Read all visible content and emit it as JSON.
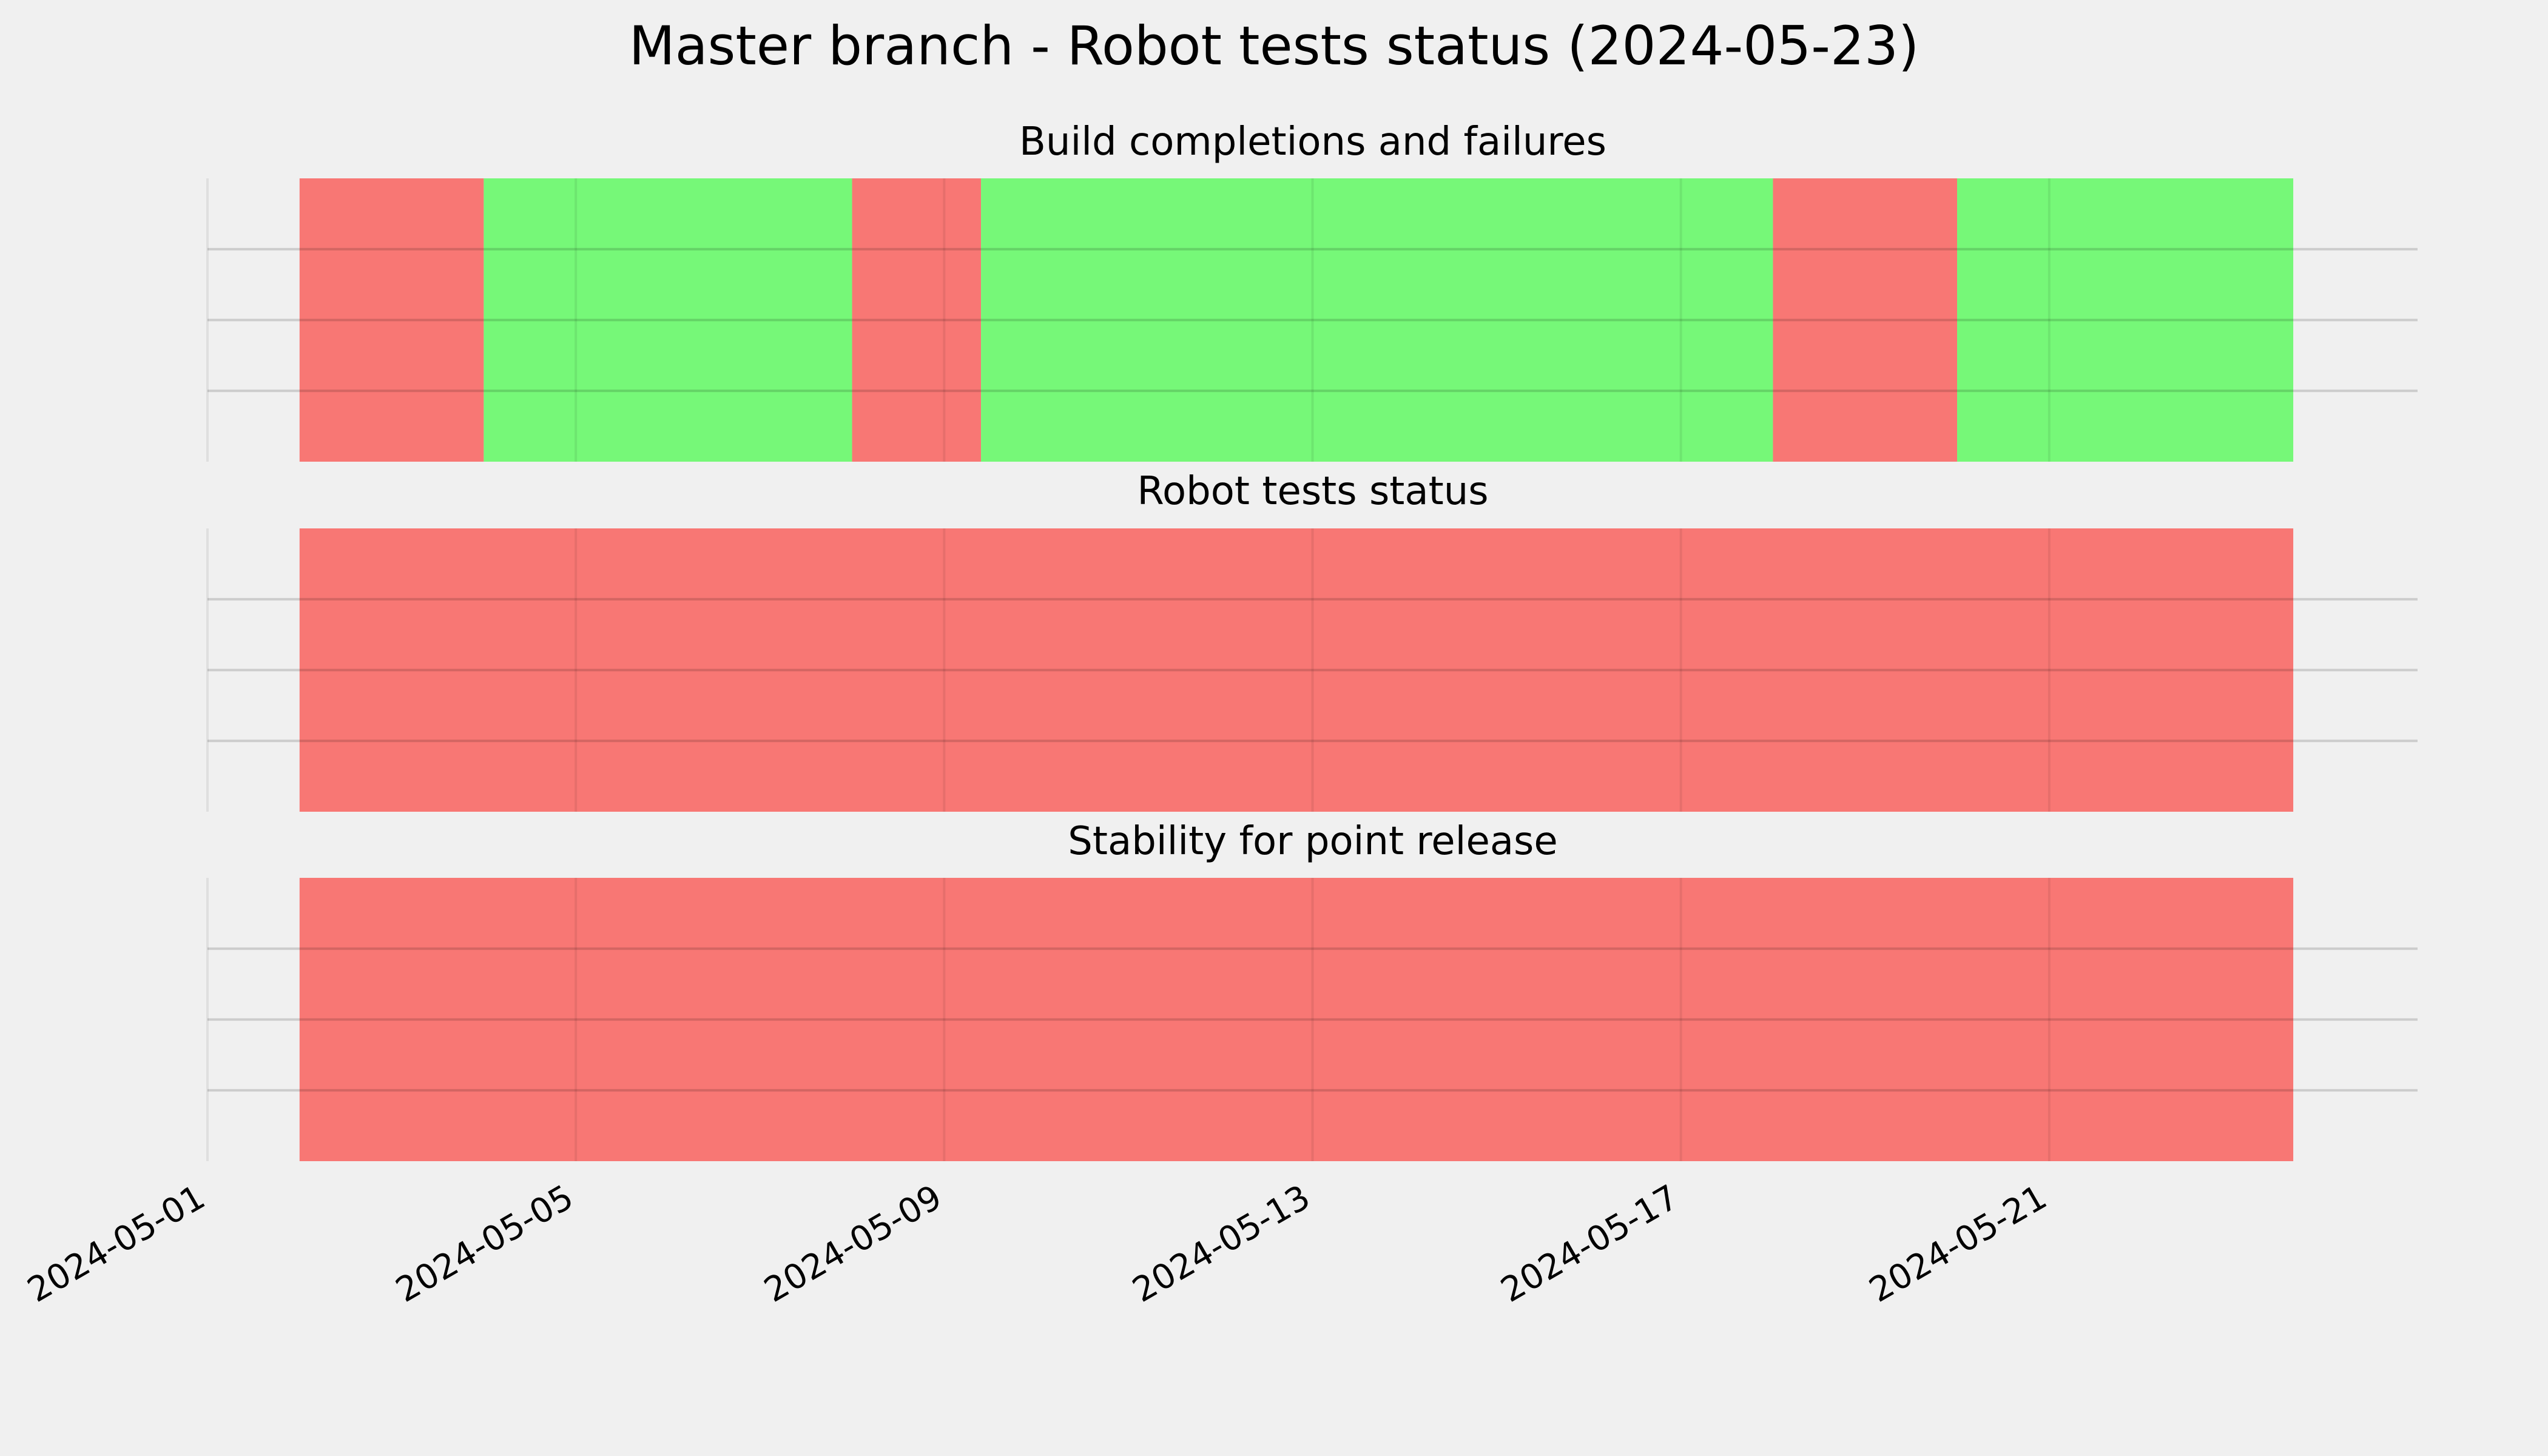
{
  "chart_data": {
    "type": "timeline",
    "title": "Master branch - Robot tests status (2024-05-23)",
    "x_axis": {
      "type": "date",
      "range": [
        "2024-05-01",
        "2024-05-25"
      ],
      "ticks": [
        "2024-05-01",
        "2024-05-05",
        "2024-05-09",
        "2024-05-13",
        "2024-05-17",
        "2024-05-21"
      ]
    },
    "grid": true,
    "colors": {
      "fail": "#f87774",
      "pass": "#76f878",
      "background": "#f0f0f0"
    },
    "panels": [
      {
        "title": "Build completions and failures",
        "segments": [
          {
            "start": "2024-05-02",
            "end": "2024-05-04",
            "status": "fail"
          },
          {
            "start": "2024-05-04",
            "end": "2024-05-08",
            "status": "pass"
          },
          {
            "start": "2024-05-08",
            "end": "2024-05-09.4",
            "status": "fail"
          },
          {
            "start": "2024-05-09.4",
            "end": "2024-05-18",
            "status": "pass"
          },
          {
            "start": "2024-05-18",
            "end": "2024-05-20",
            "status": "fail"
          },
          {
            "start": "2024-05-20",
            "end": "2024-05-23.65",
            "status": "pass"
          }
        ]
      },
      {
        "title": "Robot tests status",
        "segments": [
          {
            "start": "2024-05-02",
            "end": "2024-05-23.65",
            "status": "fail"
          }
        ]
      },
      {
        "title": "Stability for point release",
        "segments": [
          {
            "start": "2024-05-02",
            "end": "2024-05-23.65",
            "status": "fail"
          }
        ]
      }
    ]
  }
}
